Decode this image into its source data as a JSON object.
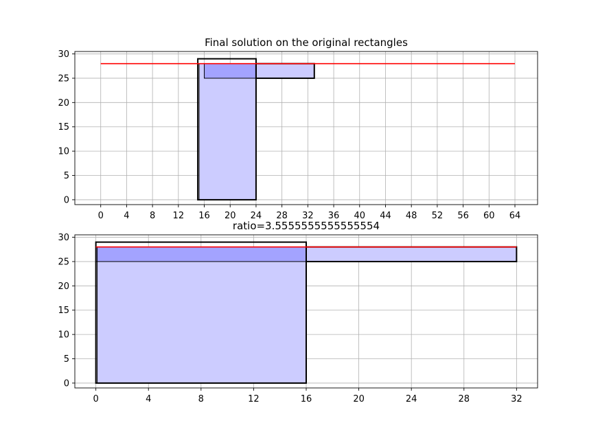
{
  "chart_data": [
    {
      "type": "rectangles",
      "title": "Final solution on the original rectangles",
      "xlabel": "",
      "ylabel": "",
      "xlim": [
        -4,
        67.5
      ],
      "ylim": [
        -1,
        30.5
      ],
      "xticks": [
        0,
        4,
        8,
        12,
        16,
        20,
        24,
        28,
        32,
        36,
        40,
        44,
        48,
        52,
        56,
        60,
        64
      ],
      "yticks": [
        0,
        5,
        10,
        15,
        20,
        25,
        30
      ],
      "grid": true,
      "rectangles": [
        {
          "x": 15,
          "y": 0,
          "w": 9,
          "h": 29,
          "style": "outline-bold"
        },
        {
          "x": 15.2,
          "y": 0,
          "w": 8.8,
          "h": 28,
          "style": "fill"
        },
        {
          "x": 16,
          "y": 25,
          "w": 17,
          "h": 3,
          "style": "fill"
        },
        {
          "x": 24,
          "y": 25,
          "w": 9,
          "h": 3,
          "style": "outline-bold"
        }
      ],
      "line": {
        "x": [
          0,
          64
        ],
        "y": [
          28,
          28
        ],
        "color": "#ff0000"
      },
      "fill_color": "#ccccff",
      "overlap_color": "#a3a3ff",
      "edge_color": "#000000",
      "grid_color": "#b0b0b0"
    },
    {
      "type": "rectangles",
      "title": "ratio=3.5555555555555554",
      "xlabel": "",
      "ylabel": "",
      "xlim": [
        -1.6,
        33.6
      ],
      "ylim": [
        -1,
        30.5
      ],
      "xticks": [
        0,
        4,
        8,
        12,
        16,
        20,
        24,
        28,
        32
      ],
      "yticks": [
        0,
        5,
        10,
        15,
        20,
        25,
        30
      ],
      "grid": true,
      "rectangles": [
        {
          "x": 0,
          "y": 0,
          "w": 16,
          "h": 29,
          "style": "outline-bold"
        },
        {
          "x": 0.1,
          "y": 0,
          "w": 15.9,
          "h": 28,
          "style": "fill"
        },
        {
          "x": 0,
          "y": 25,
          "w": 32,
          "h": 3,
          "style": "fill"
        },
        {
          "x": 16,
          "y": 25,
          "w": 16,
          "h": 3,
          "style": "outline-bold"
        }
      ],
      "line": {
        "x": [
          0,
          32
        ],
        "y": [
          28,
          28
        ],
        "color": "#ff0000"
      },
      "fill_color": "#ccccff",
      "overlap_color": "#a3a3ff",
      "edge_color": "#000000",
      "grid_color": "#b0b0b0"
    }
  ]
}
